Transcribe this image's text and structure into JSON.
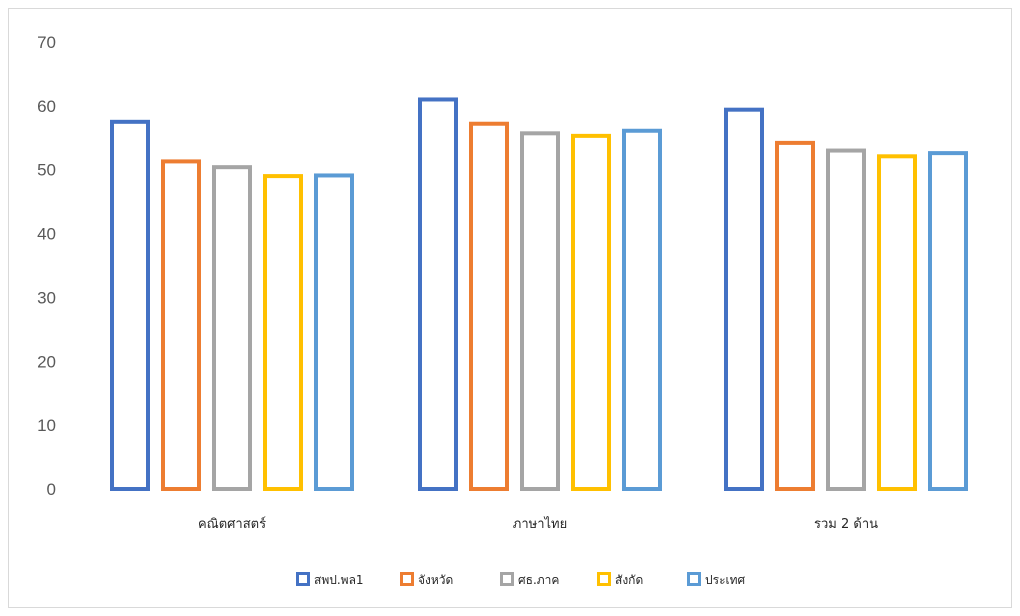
{
  "chart_data": {
    "type": "bar",
    "categories": [
      "คณิตศาสตร์",
      "ภาษาไทย",
      "รวม 2 ด้าน"
    ],
    "series": [
      {
        "name": "สพป.พล1",
        "color": "#4472C4",
        "values": [
          57.5,
          61.0,
          59.4
        ]
      },
      {
        "name": "จังหวัด",
        "color": "#ED7D31",
        "values": [
          51.3,
          57.2,
          54.2
        ]
      },
      {
        "name": "ศธ.ภาค",
        "color": "#A5A5A5",
        "values": [
          50.4,
          55.7,
          53.0
        ]
      },
      {
        "name": "สังกัด",
        "color": "#FFC000",
        "values": [
          49.0,
          55.3,
          52.1
        ]
      },
      {
        "name": "ประเทศ",
        "color": "#5B9BD5",
        "values": [
          49.1,
          56.1,
          52.6
        ]
      }
    ],
    "ylim": [
      0,
      70
    ],
    "yticks": [
      0,
      10,
      20,
      30,
      40,
      50,
      60,
      70
    ],
    "grid": false,
    "legend_position": "bottom"
  }
}
